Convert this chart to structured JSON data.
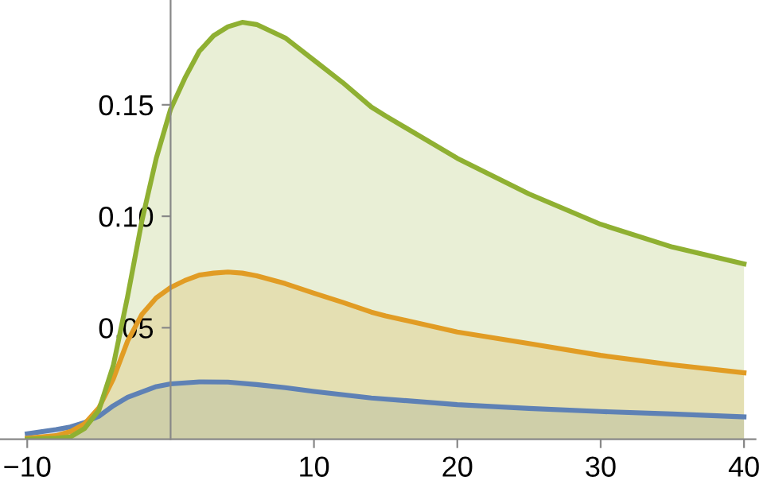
{
  "chart_data": {
    "type": "area",
    "xlim": [
      -11.9,
      40.8
    ],
    "ylim": [
      0,
      0.197
    ],
    "xticks": [
      -10,
      10,
      20,
      30,
      40
    ],
    "yticks": [
      {
        "value": 0.05,
        "label": "0.05"
      },
      {
        "value": 0.1,
        "label": "0.10"
      },
      {
        "value": 0.15,
        "label": "0.15"
      }
    ],
    "grid": false,
    "series": [
      {
        "color": "#5e81b5",
        "x": [
          -10,
          -8,
          -7,
          -6,
          -5,
          -4,
          -3,
          -2,
          -1,
          0,
          2,
          4,
          6,
          8,
          10,
          14,
          20,
          25,
          30,
          35,
          40
        ],
        "values": [
          0.0024,
          0.0043,
          0.0055,
          0.0075,
          0.0103,
          0.015,
          0.0188,
          0.0212,
          0.0236,
          0.0248,
          0.0257,
          0.0256,
          0.0245,
          0.0231,
          0.0214,
          0.0185,
          0.0155,
          0.0138,
          0.0124,
          0.0113,
          0.01
        ]
      },
      {
        "color": "#e19c24",
        "x": [
          -10,
          -8,
          -7,
          -6,
          -5,
          -4,
          -3,
          -2,
          -1,
          0,
          1,
          2,
          3,
          4,
          5,
          6,
          8,
          10,
          12,
          14,
          15,
          20,
          25,
          30,
          35,
          40
        ],
        "values": [
          0.0005,
          0.0016,
          0.0034,
          0.0069,
          0.0141,
          0.027,
          0.044,
          0.056,
          0.0634,
          0.068,
          0.0712,
          0.0736,
          0.0745,
          0.075,
          0.0745,
          0.0733,
          0.0698,
          0.0655,
          0.0614,
          0.057,
          0.0553,
          0.0481,
          0.0429,
          0.0376,
          0.0334,
          0.0298
        ]
      },
      {
        "color": "#8fb032",
        "x": [
          -10,
          -8,
          -7,
          -6,
          -5,
          -4,
          -3,
          -2,
          -1,
          0,
          1,
          2,
          3,
          4,
          5,
          6,
          8,
          10,
          12,
          14,
          15,
          20,
          25,
          30,
          35,
          40
        ],
        "values": [
          0,
          0.0005,
          0.001,
          0.0048,
          0.013,
          0.033,
          0.064,
          0.098,
          0.126,
          0.148,
          0.162,
          0.174,
          0.181,
          0.185,
          0.187,
          0.186,
          0.18,
          0.17,
          0.16,
          0.149,
          0.145,
          0.126,
          0.11,
          0.0964,
          0.0862,
          0.0786
        ]
      }
    ]
  }
}
